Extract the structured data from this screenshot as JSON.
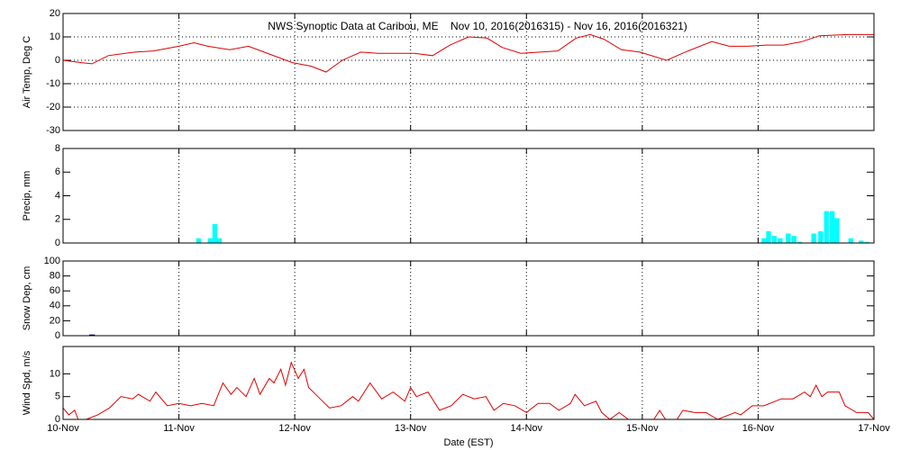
{
  "chart_data": [
    {
      "type": "line",
      "title": "NWS Synoptic Data at Caribou, ME    Nov 10, 2016(2016315) - Nov 16, 2016(2016321)",
      "ylabel": "Air Temp, Deg C",
      "color": "#e00000",
      "xlim": [
        0,
        7
      ],
      "ylim": [
        -30,
        20
      ],
      "yticks": [
        -30,
        -20,
        -10,
        0,
        10,
        20
      ],
      "ygrid": true,
      "x": [
        0,
        0.16,
        0.25,
        0.39,
        0.62,
        0.78,
        1.0,
        1.13,
        1.25,
        1.44,
        1.6,
        1.79,
        1.98,
        2.14,
        2.27,
        2.41,
        2.57,
        2.72,
        2.88,
        3.03,
        3.19,
        3.34,
        3.5,
        3.66,
        3.79,
        3.95,
        4.12,
        4.27,
        4.43,
        4.55,
        4.67,
        4.82,
        4.98,
        5.21,
        5.37,
        5.6,
        5.75,
        5.91,
        6.07,
        6.22,
        6.38,
        6.53,
        6.77,
        7.0
      ],
      "values": [
        0,
        -1,
        -1.5,
        2,
        3.5,
        4,
        6,
        7.5,
        6,
        4.5,
        6,
        2.5,
        -1,
        -2.5,
        -5,
        0,
        3.5,
        3,
        3,
        3,
        2,
        6.5,
        10,
        9.5,
        5.5,
        3,
        3.5,
        4,
        9.5,
        11,
        9,
        4.5,
        3.5,
        0,
        3.5,
        8,
        6,
        6,
        6.5,
        6.5,
        8,
        10.5,
        11,
        11
      ]
    },
    {
      "type": "bar",
      "ylabel": "Precip, mm",
      "color": "#00ffff",
      "xlim": [
        0,
        7
      ],
      "ylim": [
        0,
        8
      ],
      "yticks": [
        0,
        2,
        4,
        6,
        8
      ],
      "ygrid": false,
      "x": [
        1.17,
        1.27,
        1.31,
        1.35,
        6.05,
        6.09,
        6.14,
        6.19,
        6.26,
        6.31,
        6.36,
        6.48,
        6.54,
        6.59,
        6.64,
        6.68,
        6.8,
        6.89,
        6.94
      ],
      "values": [
        0.4,
        0.4,
        1.6,
        0.4,
        0.4,
        1.0,
        0.6,
        0.4,
        0.8,
        0.6,
        0.1,
        0.8,
        1.0,
        2.7,
        2.7,
        2.1,
        0.4,
        0.2,
        0.1
      ]
    },
    {
      "type": "bar",
      "ylabel": "Snow Dep, cm",
      "color": "#000080",
      "xlim": [
        0,
        7
      ],
      "ylim": [
        0,
        100
      ],
      "yticks": [
        0,
        20,
        40,
        60,
        80,
        100
      ],
      "ygrid": false,
      "x": [
        0.25
      ],
      "values": [
        1
      ]
    },
    {
      "type": "line",
      "ylabel": "Wind Spd, m/s",
      "xlabel": "Date (EST)",
      "color": "#e00000",
      "xlim": [
        0,
        7
      ],
      "ylim": [
        0,
        16
      ],
      "yticks": [
        0,
        5,
        10
      ],
      "ygrid": false,
      "xticks": [
        {
          "value": 0,
          "label": "10-Nov"
        },
        {
          "value": 1,
          "label": "11-Nov"
        },
        {
          "value": 2,
          "label": "12-Nov"
        },
        {
          "value": 3,
          "label": "13-Nov"
        },
        {
          "value": 4,
          "label": "14-Nov"
        },
        {
          "value": 5,
          "label": "15-Nov"
        },
        {
          "value": 6,
          "label": "16-Nov"
        },
        {
          "value": 7,
          "label": "17-Nov"
        }
      ],
      "x": [
        0,
        0.05,
        0.1,
        0.13,
        0.2,
        0.3,
        0.4,
        0.5,
        0.6,
        0.65,
        0.75,
        0.8,
        0.9,
        1.0,
        1.1,
        1.2,
        1.3,
        1.38,
        1.45,
        1.5,
        1.58,
        1.65,
        1.7,
        1.78,
        1.82,
        1.88,
        1.92,
        1.97,
        2.03,
        2.08,
        2.12,
        2.2,
        2.3,
        2.4,
        2.5,
        2.55,
        2.65,
        2.75,
        2.85,
        2.95,
        3.0,
        3.05,
        3.15,
        3.25,
        3.35,
        3.45,
        3.55,
        3.65,
        3.72,
        3.8,
        3.9,
        4.0,
        4.1,
        4.2,
        4.28,
        4.38,
        4.42,
        4.5,
        4.6,
        4.65,
        4.72,
        4.8,
        4.88,
        4.95,
        5.1,
        5.15,
        5.2,
        5.3,
        5.35,
        5.45,
        5.55,
        5.65,
        5.8,
        5.85,
        5.95,
        6.05,
        6.2,
        6.3,
        6.4,
        6.45,
        6.5,
        6.55,
        6.6,
        6.7,
        6.75,
        6.85,
        6.95,
        7.0
      ],
      "values": [
        2.5,
        1,
        2,
        0,
        0,
        1,
        2.5,
        5,
        4.5,
        5.5,
        4,
        6,
        3,
        3.5,
        3,
        3.5,
        3,
        8,
        5.5,
        7,
        5,
        9,
        5.5,
        9,
        8,
        11,
        7.5,
        12.5,
        9,
        11,
        7,
        5,
        2.5,
        3,
        5,
        4,
        8,
        4.5,
        6,
        4,
        7,
        5,
        6,
        2,
        3,
        5.5,
        4.5,
        5,
        2,
        3.5,
        3,
        1.5,
        3.5,
        3.5,
        2,
        3.5,
        5.5,
        3,
        4,
        1.5,
        0,
        1.5,
        0,
        0,
        0,
        2,
        0,
        0,
        2,
        1.5,
        1.5,
        0,
        1.5,
        1,
        3,
        3,
        4.5,
        4.5,
        6,
        5,
        7.5,
        5,
        6,
        6,
        3,
        1.5,
        1.5,
        0
      ]
    }
  ]
}
